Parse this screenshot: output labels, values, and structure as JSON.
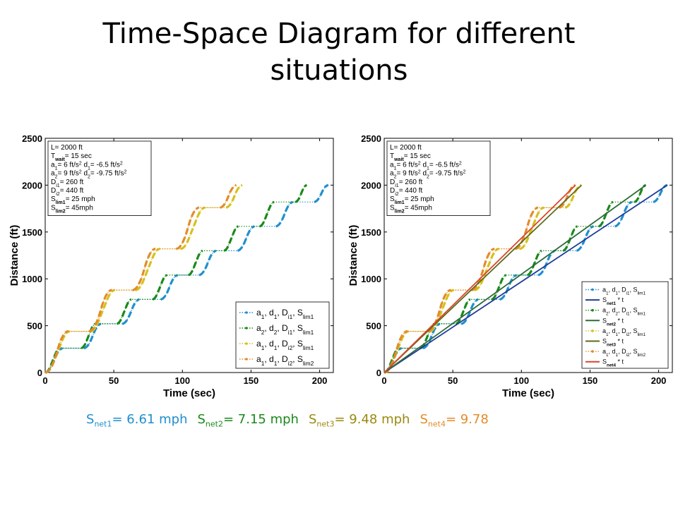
{
  "slide": {
    "title_line1": "Time-Space Diagram for different",
    "title_line2": "situations"
  },
  "colors": {
    "blue": "#1f8fcf",
    "green": "#1a8a1a",
    "yellow": "#d4c21c",
    "orange": "#e38b2a",
    "fit_blue": "#1f3d9a",
    "fit_green": "#2e6b3a",
    "fit_olive": "#5e6b1a",
    "fit_red": "#d8462a"
  },
  "speeds": [
    {
      "prefix": "S",
      "sub": "net1",
      "text": "= 6.61 mph",
      "color": "#1f8fcf"
    },
    {
      "prefix": "S",
      "sub": "net2",
      "text": "= 7.15 mph",
      "color": "#1a8a1a"
    },
    {
      "prefix": "S",
      "sub": "net3",
      "text": "= 9.48 mph",
      "color": "#9a8a10"
    },
    {
      "prefix": "S",
      "sub": "net4",
      "text": "= 9.78",
      "color": "#e38b2a"
    }
  ],
  "info_box": {
    "lines": [
      {
        "t": "L= 2000 ft"
      },
      {
        "t": "T",
        "sub": "wait",
        "t2": "= 15 sec"
      },
      {
        "t": "a",
        "sub": "1",
        "t2": "= 6 ft/s",
        "sup": "2",
        "t3": "   d",
        "sub2": "1",
        "t4": "= -6.5 ft/s",
        "sup2": "2"
      },
      {
        "t": "a",
        "sub": "2",
        "t2": "= 9 ft/s",
        "sup": "2",
        "t3": "   d",
        "sub2": "2",
        "t4": "= -9.75 ft/s",
        "sup2": "2"
      },
      {
        "t": "D",
        "sub": "i1",
        "t2": "= 260 ft"
      },
      {
        "t": "D",
        "sub": "i2",
        "t2": "= 440 ft"
      },
      {
        "t": "S",
        "sub": "lim1",
        "t2": "= 25 mph"
      },
      {
        "t": "S",
        "sub": "lim2",
        "t2": "= 45mph"
      }
    ]
  },
  "chart_data": [
    {
      "type": "line",
      "xlabel": "Time (sec)",
      "ylabel": "Distance (ft)",
      "xlim": [
        0,
        210
      ],
      "ylim": [
        0,
        2500
      ],
      "xticks": [
        0,
        50,
        100,
        150,
        200
      ],
      "yticks": [
        0,
        500,
        1000,
        1500,
        2000,
        2500
      ],
      "legend_position": "bottom-right",
      "series": [
        {
          "name": "a1, d1, Di1, Slim1",
          "legend": {
            "main": "a",
            "s1": "1",
            "m2": ", d",
            "s2": "1",
            "m3": ", D",
            "s3": "i1",
            "m4": ", S",
            "s4": "lim1"
          },
          "color_key": "blue",
          "dwell": 15,
          "step": 260,
          "accel": 6,
          "decel": 6.5,
          "vmax_mph": 25
        },
        {
          "name": "a2, d2, Di1, Slim1",
          "legend": {
            "main": "a",
            "s1": "2",
            "m2": ", d",
            "s2": "2",
            "m3": ", D",
            "s3": "i1",
            "m4": ", S",
            "s4": "lim1"
          },
          "color_key": "green",
          "dwell": 15,
          "step": 260,
          "accel": 9,
          "decel": 9.75,
          "vmax_mph": 25
        },
        {
          "name": "a1, d1, Di2, Slim1",
          "legend": {
            "main": "a",
            "s1": "1",
            "m2": ", d",
            "s2": "1",
            "m3": ", D",
            "s3": "i2",
            "m4": ", S",
            "s4": "lim1"
          },
          "color_key": "yellow",
          "dwell": 15,
          "step": 440,
          "accel": 6,
          "decel": 6.5,
          "vmax_mph": 25
        },
        {
          "name": "a1, d1, Di2, Slim2",
          "legend": {
            "main": "a",
            "s1": "1",
            "m2": ", d",
            "s2": "1",
            "m3": ", D",
            "s3": "i2",
            "m4": ", S",
            "s4": "lim2"
          },
          "color_key": "orange",
          "dwell": 15,
          "step": 440,
          "accel": 6,
          "decel": 6.5,
          "vmax_mph": 45
        }
      ]
    },
    {
      "type": "line",
      "xlabel": "Time (sec)",
      "ylabel": "Distance (ft)",
      "xlim": [
        0,
        210
      ],
      "ylim": [
        0,
        2500
      ],
      "xticks": [
        0,
        50,
        100,
        150,
        200
      ],
      "yticks": [
        0,
        500,
        1000,
        1500,
        2000,
        2500
      ],
      "legend_position": "bottom-right",
      "series": [
        {
          "name": "a1, d1, Di1, Slim1",
          "legend": {
            "main": "a",
            "s1": "1",
            "m2": ", d",
            "s2": "1",
            "m3": ", D",
            "s3": "i1",
            "m4": ", S",
            "s4": "lim1"
          },
          "color_key": "blue",
          "dwell": 15,
          "step": 260,
          "accel": 6,
          "decel": 6.5,
          "vmax_mph": 25
        },
        {
          "name": "Snet1 * t",
          "legend": {
            "main": "S",
            "s1": "net1",
            "m2": " * t"
          },
          "color_key": "fit_blue",
          "fit": true,
          "speed_mph": 6.61
        },
        {
          "name": "a2, d2, Di1, Slim1",
          "legend": {
            "main": "a",
            "s1": "2",
            "m2": ", d",
            "s2": "2",
            "m3": ", D",
            "s3": "i1",
            "m4": ", S",
            "s4": "lim1"
          },
          "color_key": "green",
          "dwell": 15,
          "step": 260,
          "accel": 9,
          "decel": 9.75,
          "vmax_mph": 25
        },
        {
          "name": "Snet2 * t",
          "legend": {
            "main": "S",
            "s1": "net2",
            "m2": " * t"
          },
          "color_key": "fit_green",
          "fit": true,
          "speed_mph": 7.15
        },
        {
          "name": "a1, d1, Di2, Slim1",
          "legend": {
            "main": "a",
            "s1": "1",
            "m2": ", d",
            "s2": "1",
            "m3": ", D",
            "s3": "i2",
            "m4": ", S",
            "s4": "lim1"
          },
          "color_key": "yellow",
          "dwell": 15,
          "step": 440,
          "accel": 6,
          "decel": 6.5,
          "vmax_mph": 25
        },
        {
          "name": "Snet3 * t",
          "legend": {
            "main": "S",
            "s1": "net3",
            "m2": " * t"
          },
          "color_key": "fit_olive",
          "fit": true,
          "speed_mph": 9.48
        },
        {
          "name": "a1, d1, Di2, Slim2",
          "legend": {
            "main": "a",
            "s1": "1",
            "m2": ", d",
            "s2": "1",
            "m3": ", D",
            "s3": "i2",
            "m4": ", S",
            "s4": "lim2"
          },
          "color_key": "orange",
          "dwell": 15,
          "step": 440,
          "accel": 6,
          "decel": 6.5,
          "vmax_mph": 45
        },
        {
          "name": "Snet4 * t",
          "legend": {
            "main": "S",
            "s1": "net4",
            "m2": " * t"
          },
          "color_key": "fit_red",
          "fit": true,
          "speed_mph": 9.78
        }
      ]
    }
  ]
}
